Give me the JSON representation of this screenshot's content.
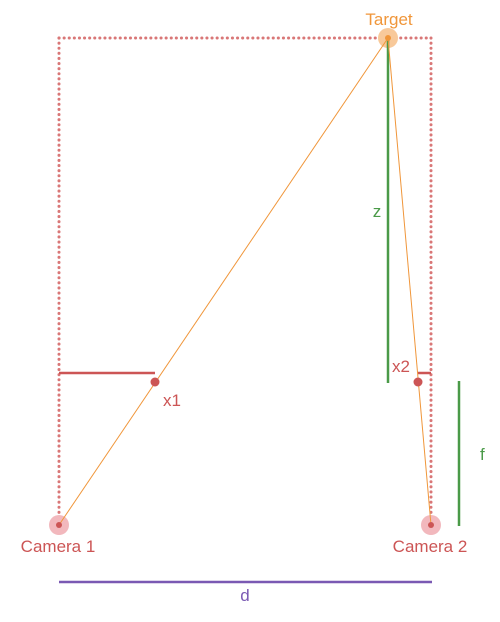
{
  "labels": {
    "target": "Target",
    "z": "z",
    "x1": "x1",
    "x2": "x2",
    "f": "f",
    "camera1": "Camera 1",
    "camera2": "Camera 2",
    "d": "d"
  },
  "colors": {
    "frame_dotted": "#d97777",
    "camera": "#cc5555",
    "camera_halo": "#f2b8bd",
    "target": "#f0963a",
    "target_halo": "#f8c99a",
    "ray": "#f0963a",
    "depth": "#4a9a48",
    "image_plane": "#cc5555",
    "baseline": "#7a59b3"
  }
}
